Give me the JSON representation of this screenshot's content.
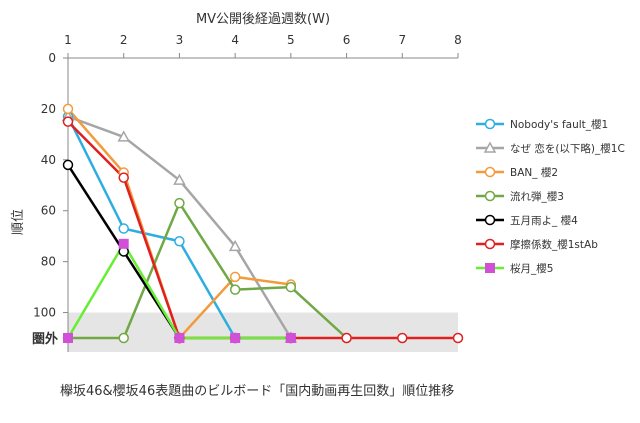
{
  "chart_data": {
    "type": "line",
    "title": "",
    "xlabel": "MV公開後経過週数(W)",
    "ylabel": "順位",
    "caption": "欅坂46&櫻坂46表題曲のビルボード「国内動画再生回数」順位推移",
    "x": [
      1,
      2,
      3,
      4,
      5,
      6,
      7,
      8
    ],
    "xlim": [
      1,
      8
    ],
    "ylim": [
      0,
      110
    ],
    "y_inverted": true,
    "y_ticks": [
      0,
      20,
      40,
      60,
      80,
      100
    ],
    "out_of_rank_label": "圏外",
    "out_of_rank_value": 110,
    "out_of_rank_band": [
      100,
      110
    ],
    "out_of_rank_band_color": "#e5e5e5",
    "grid": false,
    "legend_position": "right",
    "series": [
      {
        "name": "Nobody's fault_櫻1",
        "color": "#2eaee0",
        "marker": "circle-open",
        "x": [
          1,
          2,
          3,
          4,
          5
        ],
        "y": [
          23,
          67,
          72,
          110,
          110
        ]
      },
      {
        "name": "なぜ 恋を(以下略)_櫻1C",
        "color": "#a6a6a6",
        "marker": "triangle-open",
        "x": [
          1,
          2,
          3,
          4,
          5
        ],
        "y": [
          23,
          31,
          48,
          74,
          110
        ]
      },
      {
        "name": "BAN_ 櫻2",
        "color": "#f39a3c",
        "marker": "circle-open",
        "x": [
          1,
          2,
          3,
          4,
          5
        ],
        "y": [
          20,
          45,
          110,
          86,
          89
        ]
      },
      {
        "name": "流れ弾_櫻3",
        "color": "#70a845",
        "marker": "circle-open",
        "x": [
          1,
          2,
          3,
          4,
          5,
          6
        ],
        "y": [
          110,
          110,
          57,
          91,
          90,
          110
        ]
      },
      {
        "name": "五月雨よ_ 櫻4",
        "color": "#000000",
        "marker": "circle-open",
        "x": [
          1,
          2,
          3
        ],
        "y": [
          42,
          76,
          110
        ]
      },
      {
        "name": "摩擦係数_櫻1stAb",
        "color": "#e02020",
        "marker": "circle-open",
        "x": [
          1,
          2,
          3,
          4,
          5,
          6,
          7,
          8
        ],
        "y": [
          25,
          47,
          110,
          110,
          110,
          110,
          110,
          110
        ]
      },
      {
        "name": "桜月_櫻5",
        "color": "#66ee33",
        "marker": "square-magenta",
        "marker_color": "#d24fd8",
        "x": [
          1,
          2,
          3,
          4,
          5
        ],
        "y": [
          110,
          73,
          110,
          110,
          110
        ]
      }
    ]
  }
}
